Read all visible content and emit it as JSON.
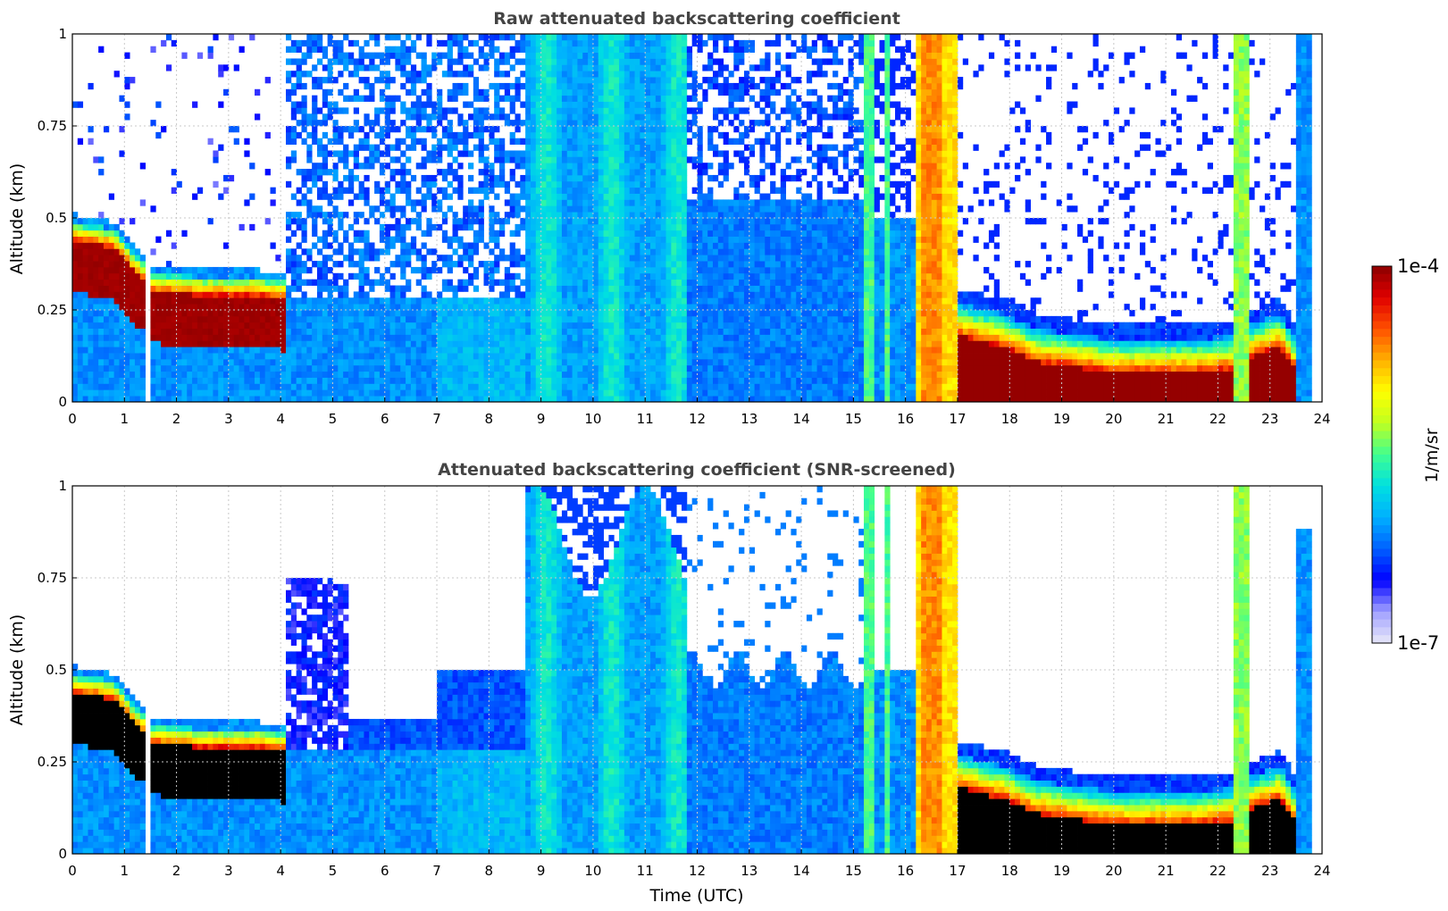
{
  "chart_data": [
    {
      "type": "heatmap",
      "title": "Raw attenuated backscattering coefficient",
      "xlabel": "",
      "ylabel": "Altitude (km)",
      "xlim": [
        0,
        24
      ],
      "ylim": [
        0,
        1
      ],
      "xticks": [
        "0",
        "1",
        "2",
        "3",
        "4",
        "5",
        "6",
        "7",
        "8",
        "9",
        "10",
        "11",
        "12",
        "13",
        "14",
        "15",
        "16",
        "17",
        "18",
        "19",
        "20",
        "21",
        "22",
        "23",
        "24"
      ],
      "yticks": [
        "0",
        "0.25",
        "0.5",
        "0.75",
        "1"
      ],
      "grid": true,
      "colormap": "jet",
      "color_range": [
        "1e-7",
        "1e-4"
      ],
      "color_scale": "log",
      "regions": [
        {
          "x": [
            0,
            1.45
          ],
          "y": [
            0.0,
            0.28
          ],
          "level": "moderate"
        },
        {
          "x": [
            0,
            1.45
          ],
          "y": [
            0.28,
            0.48
          ],
          "level": "very-high",
          "note": "boundary layer top descends from 0.43 to 0.25 km"
        },
        {
          "x": [
            1.45,
            1.55
          ],
          "y": [
            0,
            1
          ],
          "level": "missing"
        },
        {
          "x": [
            1.55,
            4.1
          ],
          "y": [
            0.15,
            0.33
          ],
          "level": "very-high",
          "note": "layer near 0.22 km"
        },
        {
          "x": [
            4.1,
            8.7
          ],
          "y": [
            0.0,
            0.3
          ],
          "level": "moderate"
        },
        {
          "x": [
            4.1,
            8.7
          ],
          "y": [
            0.3,
            1.0
          ],
          "level": "low-noisy"
        },
        {
          "x": [
            8.7,
            11.8
          ],
          "y": [
            0.0,
            1.0
          ],
          "level": "moderate-high"
        },
        {
          "x": [
            11.8,
            15.2
          ],
          "y": [
            0.0,
            0.55
          ],
          "level": "moderate"
        },
        {
          "x": [
            15.2,
            15.7
          ],
          "y": [
            0.0,
            1.0
          ],
          "level": "high",
          "note": "vertical streaks"
        },
        {
          "x": [
            16.2,
            17.0
          ],
          "y": [
            0.0,
            1.0
          ],
          "level": "very-high",
          "note": "thick layer"
        },
        {
          "x": [
            17.0,
            22.3
          ],
          "y": [
            0.0,
            0.18
          ],
          "level": "very-high",
          "note": "boundary layer near 0.1 km"
        },
        {
          "x": [
            22.3,
            22.6
          ],
          "y": [
            0.0,
            1.0
          ],
          "level": "high"
        },
        {
          "x": [
            22.6,
            23.5
          ],
          "y": [
            0.0,
            0.28
          ],
          "level": "very-high"
        },
        {
          "x": [
            23.5,
            23.8
          ],
          "y": [
            0.0,
            1.0
          ],
          "level": "moderate"
        }
      ]
    },
    {
      "type": "heatmap",
      "title": "Attenuated backscattering coefficient (SNR-screened)",
      "xlabel": "Time (UTC)",
      "ylabel": "Altitude (km)",
      "xlim": [
        0,
        24
      ],
      "ylim": [
        0,
        1
      ],
      "xticks": [
        "0",
        "1",
        "2",
        "3",
        "4",
        "5",
        "6",
        "7",
        "8",
        "9",
        "10",
        "11",
        "12",
        "13",
        "14",
        "15",
        "16",
        "17",
        "18",
        "19",
        "20",
        "21",
        "22",
        "23",
        "24"
      ],
      "yticks": [
        "0",
        "0.25",
        "0.5",
        "0.75",
        "1"
      ],
      "grid": true,
      "colormap": "jet",
      "color_range": [
        "1e-7",
        "1e-4"
      ],
      "color_scale": "log",
      "regions": [
        {
          "x": [
            0,
            1.45
          ],
          "y": [
            0.0,
            0.28
          ],
          "level": "moderate"
        },
        {
          "x": [
            0,
            1.45
          ],
          "y": [
            0.28,
            0.48
          ],
          "level": "saturated"
        },
        {
          "x": [
            1.45,
            1.55
          ],
          "y": [
            0,
            1
          ],
          "level": "missing"
        },
        {
          "x": [
            1.55,
            4.1
          ],
          "y": [
            0.15,
            0.33
          ],
          "level": "saturated"
        },
        {
          "x": [
            4.1,
            5.2
          ],
          "y": [
            0.3,
            0.75
          ],
          "level": "low"
        },
        {
          "x": [
            4.1,
            7.0
          ],
          "y": [
            0.0,
            0.35
          ],
          "level": "moderate"
        },
        {
          "x": [
            7.0,
            8.7
          ],
          "y": [
            0.0,
            0.5
          ],
          "level": "moderate"
        },
        {
          "x": [
            8.7,
            11.8
          ],
          "y": [
            0.0,
            1.0
          ],
          "level": "moderate-high"
        },
        {
          "x": [
            11.8,
            15.2
          ],
          "y": [
            0.0,
            0.5
          ],
          "level": "moderate"
        },
        {
          "x": [
            15.2,
            15.7
          ],
          "y": [
            0.0,
            1.0
          ],
          "level": "high"
        },
        {
          "x": [
            16.2,
            17.0
          ],
          "y": [
            0.0,
            1.0
          ],
          "level": "very-high"
        },
        {
          "x": [
            17.0,
            22.3
          ],
          "y": [
            0.0,
            0.18
          ],
          "level": "saturated"
        },
        {
          "x": [
            22.3,
            22.6
          ],
          "y": [
            0.0,
            1.0
          ],
          "level": "high"
        },
        {
          "x": [
            22.6,
            23.5
          ],
          "y": [
            0.0,
            0.28
          ],
          "level": "saturated"
        },
        {
          "x": [
            23.5,
            23.8
          ],
          "y": [
            0.0,
            0.85
          ],
          "level": "moderate"
        }
      ]
    }
  ],
  "colorbar": {
    "max_label": "1e-4",
    "min_label": "1e-7",
    "unit_label": "1/m/sr",
    "stops": [
      "#e8e8f8",
      "#a0a0ff",
      "#0000ff",
      "#0060ff",
      "#00b0ff",
      "#00e0e0",
      "#40ff90",
      "#c0ff20",
      "#ffff00",
      "#ffb000",
      "#ff5000",
      "#e00000",
      "#8b0000"
    ]
  },
  "colors": {
    "background": "#ffffff",
    "missing": "#ffffff",
    "saturated": "#000000",
    "grid": "#c8c8c8",
    "title": "#444444"
  }
}
